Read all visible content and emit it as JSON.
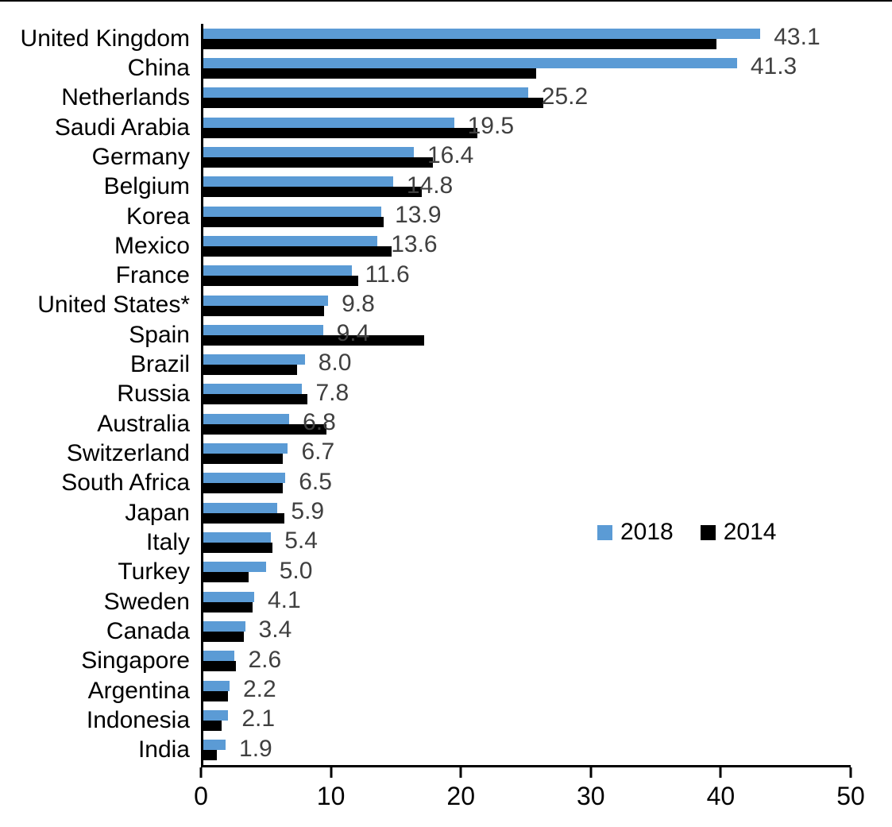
{
  "chart_data": {
    "type": "bar",
    "orientation": "horizontal",
    "title": "",
    "xlabel": "",
    "ylabel": "",
    "xlim": [
      0,
      50
    ],
    "x_ticks": [
      "0",
      "10",
      "20",
      "30",
      "40",
      "50"
    ],
    "grid": false,
    "legend_position": "middle-right",
    "categories": [
      "United Kingdom",
      "China",
      "Netherlands",
      "Saudi Arabia",
      "Germany",
      "Belgium",
      "Korea",
      "Mexico",
      "France",
      "United States*",
      "Spain",
      "Brazil",
      "Russia",
      "Australia",
      "Switzerland",
      "South Africa",
      "Japan",
      "Italy",
      "Turkey",
      "Sweden",
      "Canada",
      "Singapore",
      "Argentina",
      "Indonesia",
      "India"
    ],
    "series": [
      {
        "name": "2018",
        "color": "#5B9BD5",
        "values": [
          43.1,
          41.3,
          25.2,
          19.5,
          16.4,
          14.8,
          13.9,
          13.6,
          11.6,
          9.8,
          9.4,
          8.0,
          7.8,
          6.8,
          6.7,
          6.5,
          5.9,
          5.4,
          5.0,
          4.1,
          3.4,
          2.6,
          2.2,
          2.1,
          1.9
        ]
      },
      {
        "name": "2014",
        "color": "#000000",
        "values": [
          39.7,
          25.8,
          26.4,
          21.3,
          17.9,
          17.0,
          14.1,
          14.7,
          12.1,
          9.5,
          17.2,
          7.4,
          8.2,
          9.7,
          6.3,
          6.3,
          6.4,
          5.5,
          3.7,
          4.0,
          3.3,
          2.7,
          2.1,
          1.6,
          1.2
        ]
      }
    ],
    "data_labels": [
      "43.1",
      "41.3",
      "25.2",
      "19.5",
      "16.4",
      "14.8",
      "13.9",
      "13.6",
      "11.6",
      "9.8",
      "9.4",
      "8.0",
      "7.8",
      "6.8",
      "6.7",
      "6.5",
      "5.9",
      "5.4",
      "5.0",
      "4.1",
      "3.4",
      "2.6",
      "2.2",
      "2.1",
      "1.9"
    ],
    "data_label_series": "2018",
    "data_label_color": "#404040",
    "legend": [
      {
        "label": "2018",
        "color": "#5B9BD5"
      },
      {
        "label": "2014",
        "color": "#000000"
      }
    ]
  }
}
